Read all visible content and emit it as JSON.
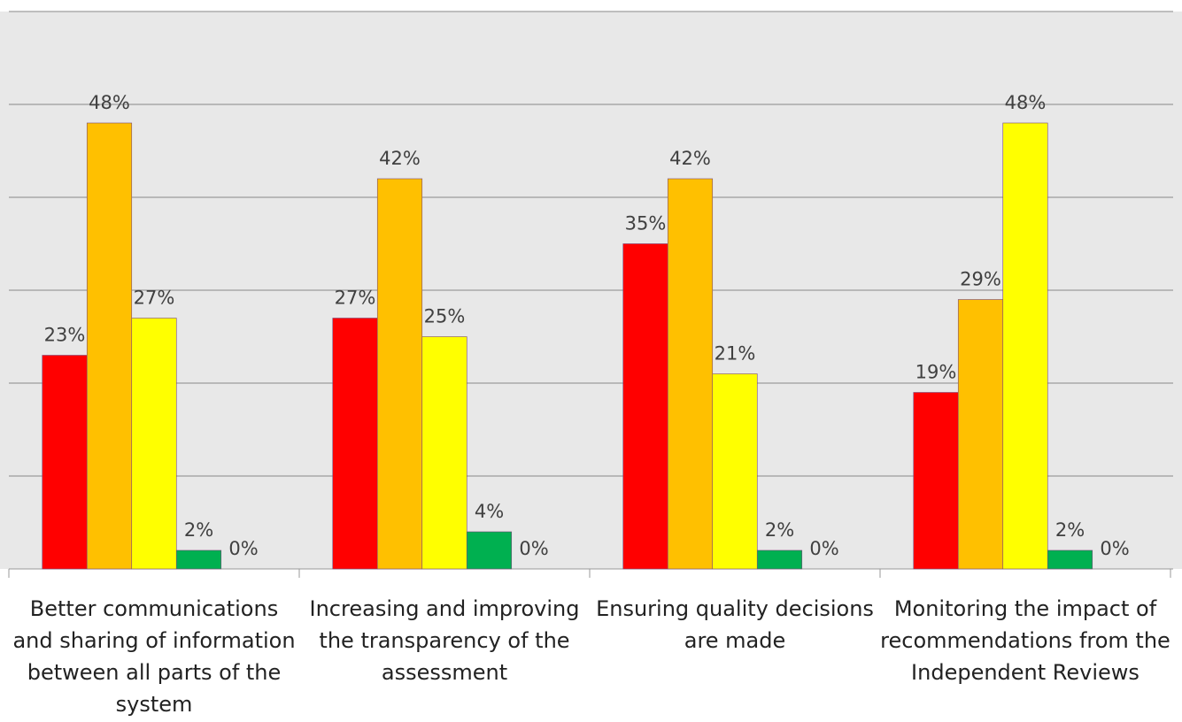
{
  "chart_data": {
    "type": "bar",
    "categories": [
      "Better communications and sharing of information between all parts of the system",
      "Increasing and improving the transparency of the assessment",
      "Ensuring quality decisions are made",
      "Monitoring the impact of recommendations from the Independent Reviews"
    ],
    "series": [
      {
        "color": "#ff0000",
        "values": [
          23,
          27,
          35,
          19
        ],
        "value_labels": [
          "23%",
          "27%",
          "35%",
          "19%"
        ]
      },
      {
        "color": "#ffc000",
        "values": [
          48,
          42,
          42,
          29
        ],
        "value_labels": [
          "48%",
          "42%",
          "42%",
          "29%"
        ]
      },
      {
        "color": "#ffff00",
        "values": [
          27,
          25,
          21,
          48
        ],
        "value_labels": [
          "27%",
          "25%",
          "21%",
          "48%"
        ]
      },
      {
        "color": "#00b050",
        "values": [
          2,
          4,
          2,
          2
        ],
        "value_labels": [
          "2%",
          "4%",
          "2%",
          "2%"
        ]
      },
      {
        "values": [
          0,
          0,
          0,
          0
        ],
        "value_labels": [
          "0%",
          "0%",
          "0%",
          "0%"
        ]
      }
    ],
    "ylim": [
      0,
      60
    ],
    "yticks": [
      0,
      10,
      20,
      30,
      40,
      50,
      60
    ],
    "grid": true
  }
}
